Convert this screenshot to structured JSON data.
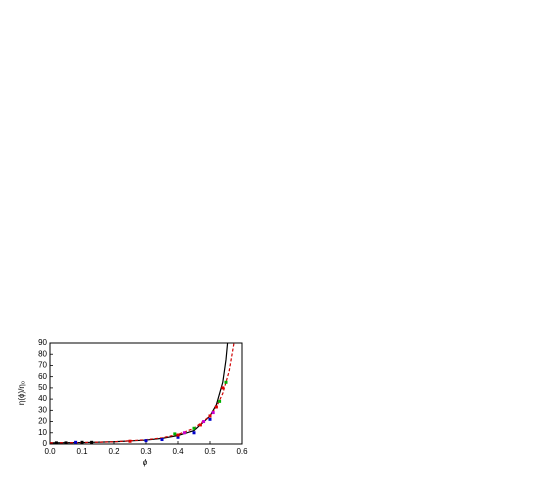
{
  "chart_data": {
    "type": "line",
    "xlabel": "ϕ",
    "ylabel": "η(ϕ)/η₀",
    "xlim": [
      0,
      0.6
    ],
    "ylim": [
      0,
      90
    ],
    "xticks": [
      {
        "value": 0,
        "label": "0.0"
      },
      {
        "value": 0.1,
        "label": "0.1"
      },
      {
        "value": 0.2,
        "label": "0.2"
      },
      {
        "value": 0.3,
        "label": "0.3"
      },
      {
        "value": 0.4,
        "label": "0.4"
      },
      {
        "value": 0.5,
        "label": "0.5"
      },
      {
        "value": 0.6,
        "label": "0.6"
      }
    ],
    "yticks": [
      0,
      10,
      20,
      30,
      40,
      50,
      60,
      70,
      80,
      90
    ],
    "series": [
      {
        "color": "#000000",
        "mode": "line",
        "dash": false,
        "x": [
          0,
          0.1,
          0.2,
          0.3,
          0.35,
          0.4,
          0.45,
          0.5,
          0.52,
          0.54,
          0.55,
          0.555
        ],
        "values": [
          1,
          1.3,
          2,
          3.5,
          5,
          7.5,
          12,
          25,
          35,
          55,
          75,
          90
        ]
      },
      {
        "color": "#d00000",
        "mode": "line",
        "dash": true,
        "x": [
          0,
          0.1,
          0.2,
          0.3,
          0.35,
          0.4,
          0.45,
          0.5,
          0.52,
          0.54,
          0.56,
          0.575
        ],
        "values": [
          1,
          1.3,
          2,
          3.8,
          5.5,
          8.5,
          14,
          25,
          33,
          45,
          65,
          90
        ]
      },
      {
        "color": "#000000",
        "mode": "markers",
        "x": [
          0.02,
          0.05,
          0.1,
          0.13
        ],
        "values": [
          1,
          1,
          1.5,
          1.5
        ]
      },
      {
        "color": "#0000cc",
        "mode": "markers",
        "x": [
          0.08,
          0.3,
          0.35,
          0.4,
          0.45,
          0.5
        ],
        "values": [
          1.5,
          3,
          4,
          6,
          10,
          22
        ]
      },
      {
        "color": "#00b000",
        "mode": "markers",
        "x": [
          0.39,
          0.45,
          0.5,
          0.53,
          0.55
        ],
        "values": [
          9,
          14,
          25,
          38,
          55
        ]
      },
      {
        "color": "#e00000",
        "mode": "markers",
        "x": [
          0.25,
          0.4,
          0.47,
          0.5,
          0.52,
          0.54
        ],
        "values": [
          2.5,
          8,
          17,
          25,
          33,
          50
        ]
      },
      {
        "color": "#cc00cc",
        "mode": "markers",
        "x": [
          0.42,
          0.48,
          0.51
        ],
        "values": [
          10,
          20,
          28
        ]
      }
    ]
  }
}
